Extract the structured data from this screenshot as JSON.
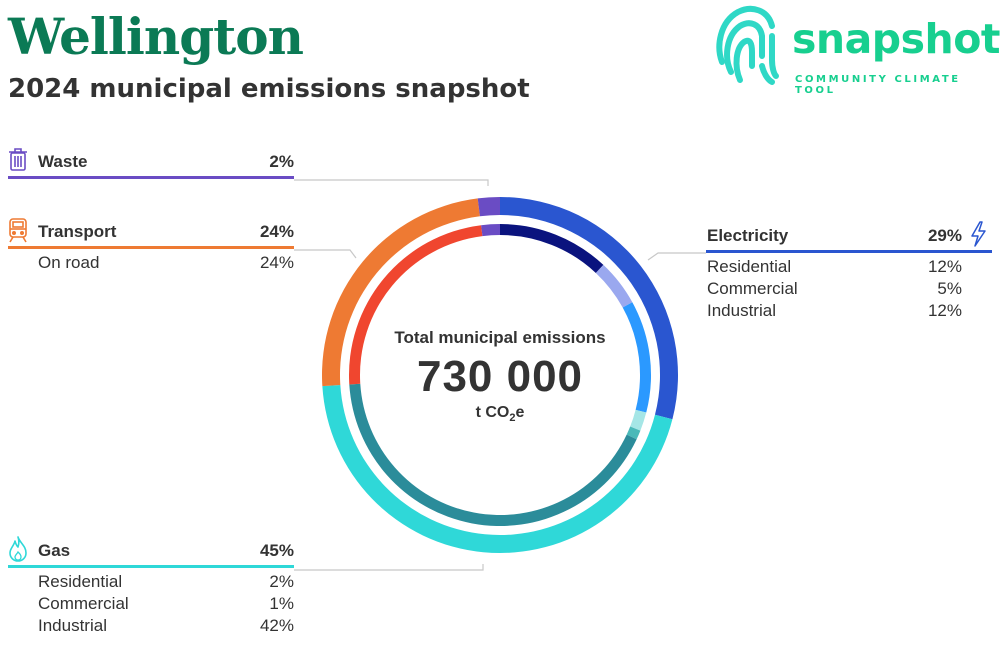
{
  "header": {
    "city": "Wellington",
    "subtitle": "2024 municipal emissions snapshot"
  },
  "logo": {
    "brand": "snapshot",
    "tagline": "COMMUNITY CLIMATE TOOL",
    "icon": "fingerprint-icon"
  },
  "center": {
    "label": "Total municipal emissions",
    "value": "730 000",
    "unit_prefix": "t CO",
    "unit_sub": "2",
    "unit_suffix": "e"
  },
  "sectors": {
    "waste": {
      "name": "Waste",
      "pct": "2%",
      "icon": "trash-icon",
      "color": "#6a4cc4"
    },
    "transport": {
      "name": "Transport",
      "pct": "24%",
      "icon": "train-icon",
      "color": "#ee7a33",
      "subs": [
        {
          "name": "On road",
          "pct": "24%"
        }
      ]
    },
    "electricity": {
      "name": "Electricity",
      "pct": "29%",
      "icon": "lightning-icon",
      "color": "#2a56d0",
      "subs": [
        {
          "name": "Residential",
          "pct": "12%"
        },
        {
          "name": "Commercial",
          "pct": "5%"
        },
        {
          "name": "Industrial",
          "pct": "12%"
        }
      ]
    },
    "gas": {
      "name": "Gas",
      "pct": "45%",
      "icon": "flame-icon",
      "color": "#2fd8d8",
      "subs": [
        {
          "name": "Residential",
          "pct": "2%"
        },
        {
          "name": "Commercial",
          "pct": "1%"
        },
        {
          "name": "Industrial",
          "pct": "42%"
        }
      ]
    }
  },
  "chart_data": {
    "type": "pie",
    "title": "Total municipal emissions",
    "total": 730000,
    "unit": "t CO2e",
    "series": [
      {
        "name": "Electricity",
        "value": 29,
        "color": "#2a56d0",
        "subs": [
          {
            "name": "Residential",
            "value": 12,
            "color": "#0a137e"
          },
          {
            "name": "Commercial",
            "value": 5,
            "color": "#9aa8ef"
          },
          {
            "name": "Industrial",
            "value": 12,
            "color": "#2b99ff"
          }
        ]
      },
      {
        "name": "Gas",
        "value": 45,
        "color": "#2fd8d8",
        "subs": [
          {
            "name": "Residential",
            "value": 2,
            "color": "#a5e6e6"
          },
          {
            "name": "Commercial",
            "value": 1,
            "color": "#4ab9b9"
          },
          {
            "name": "Industrial",
            "value": 42,
            "color": "#2b8c9a"
          }
        ]
      },
      {
        "name": "Transport",
        "value": 24,
        "color": "#ee7a33",
        "subs": [
          {
            "name": "On road",
            "value": 24,
            "color": "#f0462f"
          }
        ]
      },
      {
        "name": "Waste",
        "value": 2,
        "color": "#6a4cc4",
        "subs": [
          {
            "name": "Waste",
            "value": 2,
            "color": "#6a4cc4"
          }
        ]
      }
    ]
  }
}
